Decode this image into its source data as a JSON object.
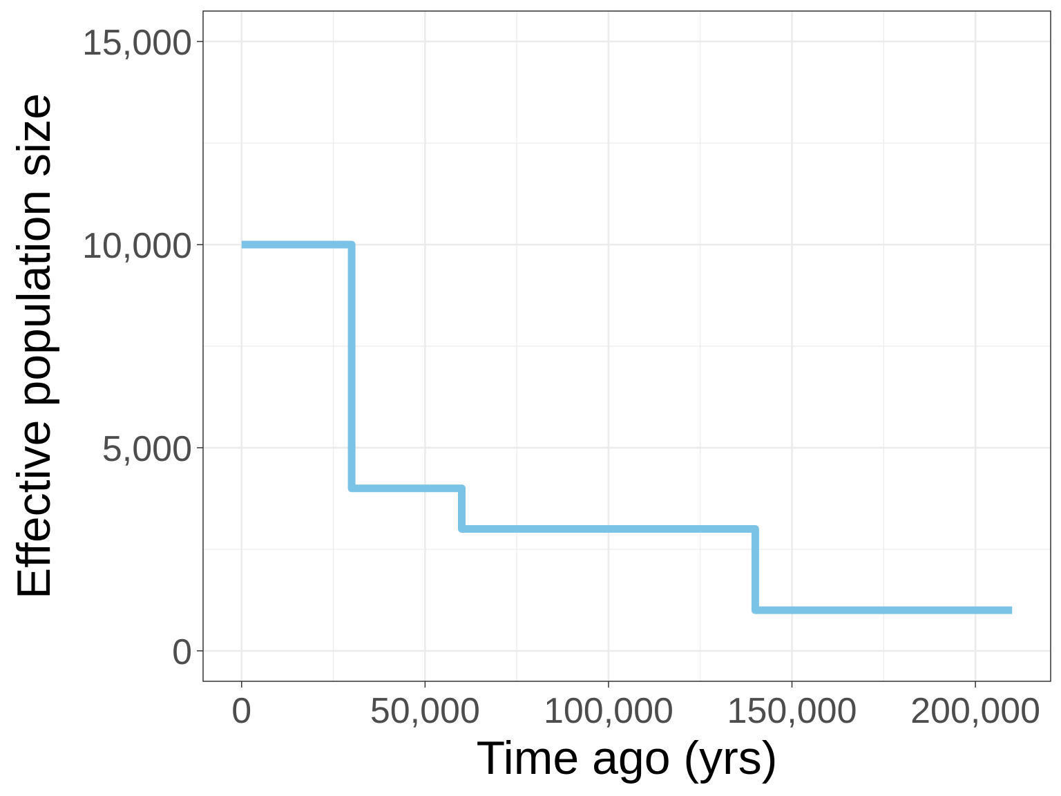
{
  "chart_data": {
    "type": "line",
    "step": true,
    "xlabel": "Time ago (yrs)",
    "ylabel": "Effective population size",
    "xlim": [
      -10500,
      220500
    ],
    "ylim": [
      -750,
      15750
    ],
    "x_ticks": [
      0,
      50000,
      100000,
      150000,
      200000
    ],
    "x_tick_labels": [
      "0",
      "50,000",
      "100,000",
      "150,000",
      "200,000"
    ],
    "y_ticks": [
      0,
      5000,
      10000,
      15000
    ],
    "y_tick_labels": [
      "0",
      "5,000",
      "10,000",
      "15,000"
    ],
    "x_minor_ticks": [
      25000,
      75000,
      125000,
      175000
    ],
    "y_minor_ticks": [
      2500,
      7500,
      12500
    ],
    "grid": true,
    "series": [
      {
        "color": "#7BC3E6",
        "x": [
          0,
          30000,
          30000,
          60000,
          60000,
          140000,
          140000,
          210000
        ],
        "y": [
          10000,
          10000,
          4000,
          4000,
          3000,
          3000,
          1000,
          1000
        ]
      }
    ]
  }
}
